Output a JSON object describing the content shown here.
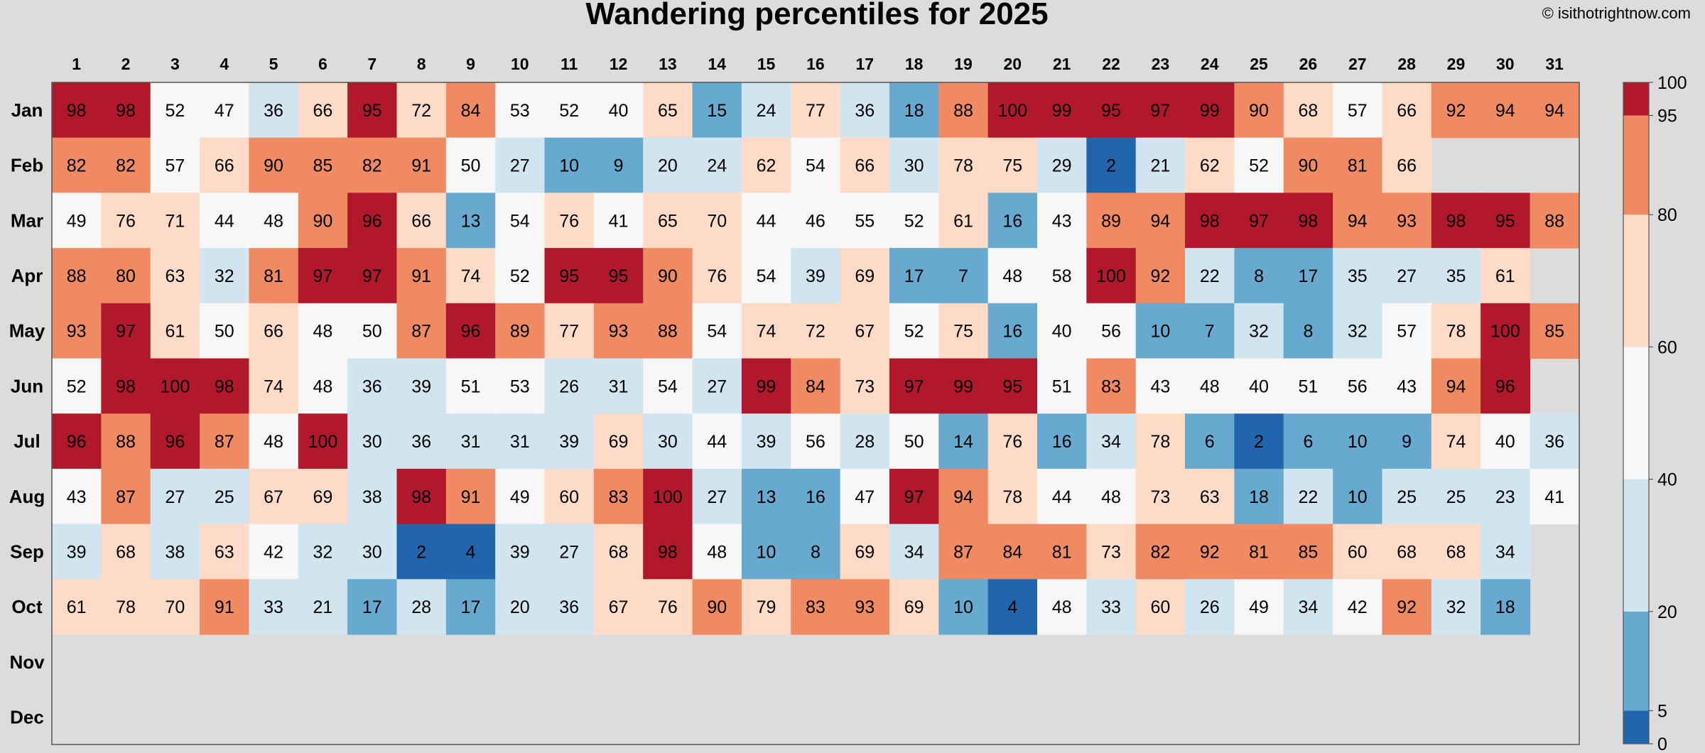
{
  "chart_data": {
    "type": "heatmap",
    "title": "Wandering percentiles for 2025",
    "credit": "© isithotrightnow.com",
    "xlabel": "",
    "ylabel": "",
    "days": [
      1,
      2,
      3,
      4,
      5,
      6,
      7,
      8,
      9,
      10,
      11,
      12,
      13,
      14,
      15,
      16,
      17,
      18,
      19,
      20,
      21,
      22,
      23,
      24,
      25,
      26,
      27,
      28,
      29,
      30,
      31
    ],
    "months": [
      "Jan",
      "Feb",
      "Mar",
      "Apr",
      "May",
      "Jun",
      "Jul",
      "Aug",
      "Sep",
      "Oct",
      "Nov",
      "Dec"
    ],
    "values": [
      [
        98,
        98,
        52,
        47,
        36,
        66,
        95,
        72,
        84,
        53,
        52,
        40,
        65,
        15,
        24,
        77,
        36,
        18,
        88,
        100,
        99,
        95,
        97,
        99,
        90,
        68,
        57,
        66,
        92,
        94,
        94
      ],
      [
        82,
        82,
        57,
        66,
        90,
        85,
        82,
        91,
        50,
        27,
        10,
        9,
        20,
        24,
        62,
        54,
        66,
        30,
        78,
        75,
        29,
        2,
        21,
        62,
        52,
        90,
        81,
        66,
        null,
        null,
        null
      ],
      [
        49,
        76,
        71,
        44,
        48,
        90,
        96,
        66,
        13,
        54,
        76,
        41,
        65,
        70,
        44,
        46,
        55,
        52,
        61,
        16,
        43,
        89,
        94,
        98,
        97,
        98,
        94,
        93,
        98,
        95,
        88
      ],
      [
        88,
        80,
        63,
        32,
        81,
        97,
        97,
        91,
        74,
        52,
        95,
        95,
        90,
        76,
        54,
        39,
        69,
        17,
        7,
        48,
        58,
        100,
        92,
        22,
        8,
        17,
        35,
        27,
        35,
        61,
        null
      ],
      [
        93,
        97,
        61,
        50,
        66,
        48,
        50,
        87,
        96,
        89,
        77,
        93,
        88,
        54,
        74,
        72,
        67,
        52,
        75,
        16,
        40,
        56,
        10,
        7,
        32,
        8,
        32,
        57,
        78,
        100,
        85
      ],
      [
        52,
        98,
        100,
        98,
        74,
        48,
        36,
        39,
        51,
        53,
        26,
        31,
        54,
        27,
        99,
        84,
        73,
        97,
        99,
        95,
        51,
        83,
        43,
        48,
        40,
        51,
        56,
        43,
        94,
        96,
        null
      ],
      [
        96,
        88,
        96,
        87,
        48,
        100,
        30,
        36,
        31,
        31,
        39,
        69,
        30,
        44,
        39,
        56,
        28,
        50,
        14,
        76,
        16,
        34,
        78,
        6,
        2,
        6,
        10,
        9,
        74,
        40,
        36
      ],
      [
        43,
        87,
        27,
        25,
        67,
        69,
        38,
        98,
        91,
        49,
        60,
        83,
        100,
        27,
        13,
        16,
        47,
        97,
        94,
        78,
        44,
        48,
        73,
        63,
        18,
        22,
        10,
        25,
        25,
        23,
        41
      ],
      [
        39,
        68,
        38,
        63,
        42,
        32,
        30,
        2,
        4,
        39,
        27,
        68,
        98,
        48,
        10,
        8,
        69,
        34,
        87,
        84,
        81,
        73,
        82,
        92,
        81,
        85,
        60,
        68,
        68,
        34,
        null
      ],
      [
        61,
        78,
        70,
        91,
        33,
        21,
        17,
        28,
        17,
        20,
        36,
        67,
        76,
        90,
        79,
        83,
        93,
        69,
        10,
        4,
        48,
        33,
        60,
        26,
        49,
        34,
        42,
        92,
        32,
        18,
        null
      ],
      [
        null,
        null,
        null,
        null,
        null,
        null,
        null,
        null,
        null,
        null,
        null,
        null,
        null,
        null,
        null,
        null,
        null,
        null,
        null,
        null,
        null,
        null,
        null,
        null,
        null,
        null,
        null,
        null,
        null,
        null,
        null
      ],
      [
        null,
        null,
        null,
        null,
        null,
        null,
        null,
        null,
        null,
        null,
        null,
        null,
        null,
        null,
        null,
        null,
        null,
        null,
        null,
        null,
        null,
        null,
        null,
        null,
        null,
        null,
        null,
        null,
        null,
        null,
        null
      ]
    ],
    "color_bins": [
      {
        "min": 0,
        "max": 5,
        "color": "#2166ac"
      },
      {
        "min": 5,
        "max": 20,
        "color": "#67a9cf"
      },
      {
        "min": 20,
        "max": 40,
        "color": "#d1e5f0"
      },
      {
        "min": 40,
        "max": 60,
        "color": "#f7f7f7"
      },
      {
        "min": 60,
        "max": 80,
        "color": "#fddbc7"
      },
      {
        "min": 80,
        "max": 95,
        "color": "#ef8a62"
      },
      {
        "min": 95,
        "max": 100,
        "color": "#b2182b"
      }
    ],
    "colorbar_ticks": [
      0,
      5,
      20,
      40,
      60,
      80,
      95,
      100
    ],
    "range": [
      0,
      100
    ],
    "background_color": "#dcdcdc",
    "grid": false
  }
}
